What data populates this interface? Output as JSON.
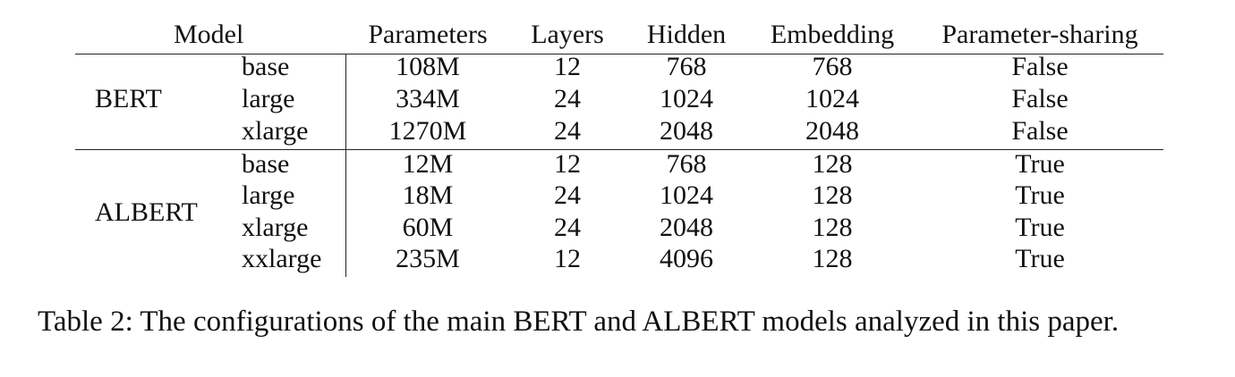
{
  "table": {
    "header": {
      "model": "Model",
      "columns": [
        "Parameters",
        "Layers",
        "Hidden",
        "Embedding",
        "Parameter-sharing"
      ]
    },
    "groups": [
      {
        "model": "BERT",
        "rows": [
          {
            "variant": "base",
            "values": [
              "108M",
              "12",
              "768",
              "768",
              "False"
            ]
          },
          {
            "variant": "large",
            "values": [
              "334M",
              "24",
              "1024",
              "1024",
              "False"
            ]
          },
          {
            "variant": "xlarge",
            "values": [
              "1270M",
              "24",
              "2048",
              "2048",
              "False"
            ]
          }
        ]
      },
      {
        "model": "ALBERT",
        "rows": [
          {
            "variant": "base",
            "values": [
              "12M",
              "12",
              "768",
              "128",
              "True"
            ]
          },
          {
            "variant": "large",
            "values": [
              "18M",
              "24",
              "1024",
              "128",
              "True"
            ]
          },
          {
            "variant": "xlarge",
            "values": [
              "60M",
              "24",
              "2048",
              "128",
              "True"
            ]
          },
          {
            "variant": "xxlarge",
            "values": [
              "235M",
              "12",
              "4096",
              "128",
              "True"
            ]
          }
        ]
      }
    ]
  },
  "caption": "Table 2: The configurations of the main BERT and ALBERT models analyzed in this paper."
}
